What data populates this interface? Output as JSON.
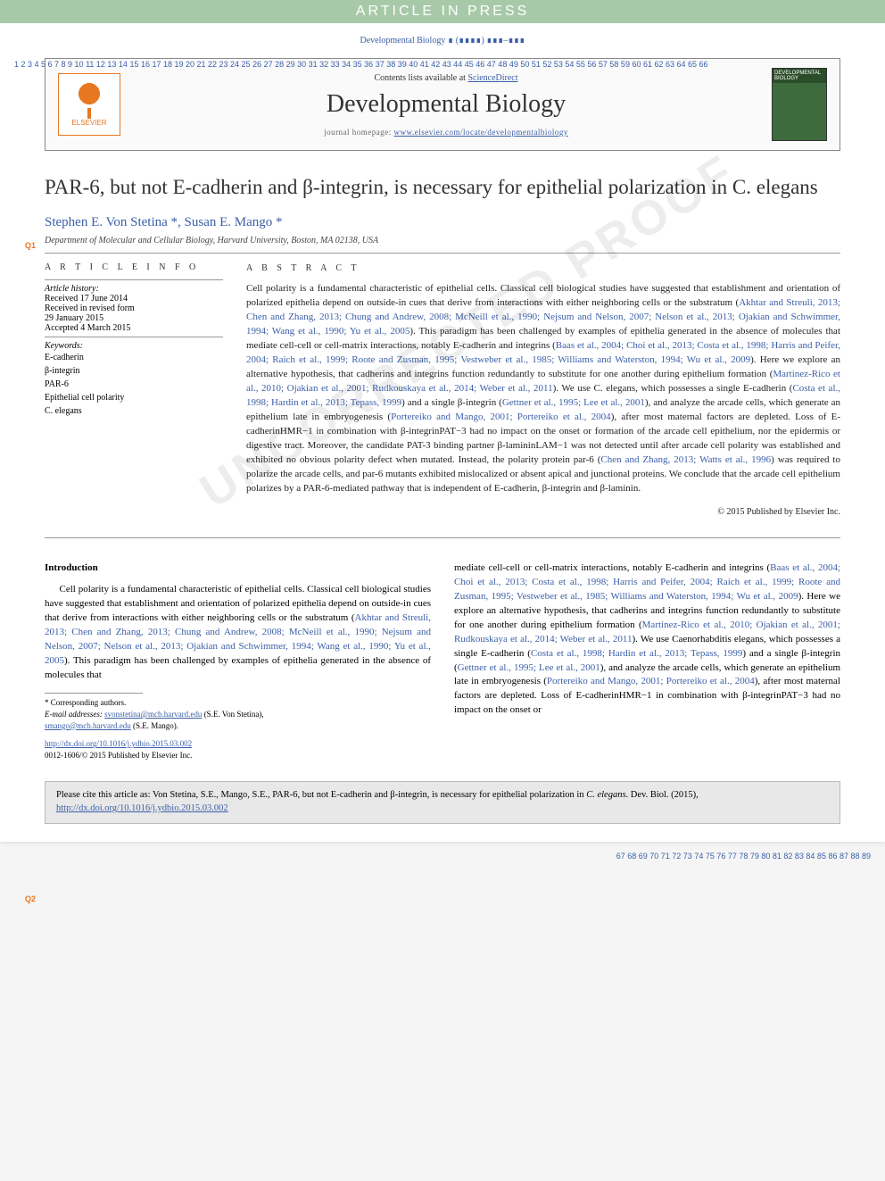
{
  "banner": "ARTICLE IN PRESS",
  "journal_ref": "Developmental Biology ∎ (∎∎∎∎) ∎∎∎–∎∎∎",
  "header": {
    "contents_prefix": "Contents lists available at ",
    "contents_link": "ScienceDirect",
    "journal_name": "Developmental Biology",
    "homepage_prefix": "journal homepage: ",
    "homepage_url": "www.elsevier.com/locate/developmentalbiology",
    "publisher": "ELSEVIER",
    "cover_caption": "DEVELOPMENTAL BIOLOGY"
  },
  "title": "PAR-6, but not E-cadherin and β-integrin, is necessary for epithelial polarization in C. elegans",
  "authors": "Stephen E. Von Stetina *, Susan E. Mango *",
  "affiliation": "Department of Molecular and Cellular Biology, Harvard University, Boston, MA 02138, USA",
  "q_markers": {
    "q1": "Q1",
    "q2": "Q2"
  },
  "info": {
    "head": "A R T I C L E   I N F O",
    "history_label": "Article history:",
    "received": "Received 17 June 2014",
    "revised": "Received in revised form",
    "revised_date": "29 January 2015",
    "accepted": "Accepted 4 March 2015",
    "keywords_label": "Keywords:",
    "keywords": [
      "E-cadherin",
      "β-integrin",
      "PAR-6",
      "Epithelial cell polarity",
      "C. elegans"
    ]
  },
  "abstract": {
    "head": "A B S T R A C T",
    "text_parts": [
      "Cell polarity is a fundamental characteristic of epithelial cells. Classical cell biological studies have suggested that establishment and orientation of polarized epithelia depend on outside-in cues that derive from interactions with either neighboring cells or the substratum (",
      "Akhtar and Streuli, 2013; Chen and Zhang, 2013; Chung and Andrew, 2008; McNeill et al., 1990; Nejsum and Nelson, 2007; Nelson et al., 2013; Ojakian and Schwimmer, 1994; Wang et al., 1990; Yu et al., 2005",
      "). This paradigm has been challenged by examples of epithelia generated in the absence of molecules that mediate cell-cell or cell-matrix interactions, notably E-cadherin and integrins (",
      "Baas et al., 2004; Choi et al., 2013; Costa et al., 1998; Harris and Peifer, 2004; Raich et al., 1999; Roote and Zusman, 1995; Vestweber et al., 1985; Williams and Waterston, 1994; Wu et al., 2009",
      "). Here we explore an alternative hypothesis, that cadherins and integrins function redundantly to substitute for one another during epithelium formation (",
      "Martinez-Rico et al., 2010; Ojakian et al., 2001; Rudkouskaya et al., 2014; Weber et al., 2011",
      "). We use C. elegans, which possesses a single E-cadherin (",
      "Costa et al., 1998; Hardin et al., 2013; Tepass, 1999",
      ") and a single β-integrin (",
      "Gettner et al., 1995; Lee et al., 2001",
      "), and analyze the arcade cells, which generate an epithelium late in embryogenesis (",
      "Portereiko and Mango, 2001; Portereiko et al., 2004",
      "), after most maternal factors are depleted. Loss of E-cadherinHMR−1 in combination with β-integrinPAT−3 had no impact on the onset or formation of the arcade cell epithelium, nor the epidermis or digestive tract. Moreover, the candidate PAT-3 binding partner β-lamininLAM−1 was not detected until after arcade cell polarity was established and exhibited no obvious polarity defect when mutated. Instead, the polarity protein par-6 (",
      "Chen and Zhang, 2013; Watts et al., 1996",
      ") was required to polarize the arcade cells, and par-6 mutants exhibited mislocalized or absent apical and junctional proteins. We conclude that the arcade cell epithelium polarizes by a PAR-6-mediated pathway that is independent of E-cadherin, β-integrin and β-laminin."
    ],
    "copyright": "© 2015 Published by Elsevier Inc."
  },
  "watermark": "UNCORRECTED PROOF",
  "intro": {
    "head": "Introduction",
    "col1_parts": [
      "Cell polarity is a fundamental characteristic of epithelial cells. Classical cell biological studies have suggested that establishment and orientation of polarized epithelia depend on outside-in cues that derive from interactions with either neighboring cells or the substratum (",
      "Akhtar and Streuli, 2013; Chen and Zhang, 2013; Chung and Andrew, 2008; McNeill et al., 1990; Nejsum and Nelson, 2007; Nelson et al., 2013; Ojakian and Schwimmer, 1994; Wang et al., 1990; Yu et al., 2005",
      "). This paradigm has been challenged by examples of epithelia generated in the absence of molecules that"
    ],
    "col2_parts": [
      "mediate cell-cell or cell-matrix interactions, notably E-cadherin and integrins (",
      "Baas et al., 2004; Choi et al., 2013; Costa et al., 1998; Harris and Peifer, 2004; Raich et al., 1999; Roote and Zusman, 1995; Vestweber et al., 1985; Williams and Waterston, 1994; Wu et al., 2009",
      "). Here we explore an alternative hypothesis, that cadherins and integrins function redundantly to substitute for one another during epithelium formation (",
      "Martinez-Rico et al., 2010; Ojakian et al., 2001; Rudkouskaya et al., 2014; Weber et al., 2011",
      "). We use Caenorhabditis elegans, which possesses a single E-cadherin (",
      "Costa et al., 1998; Hardin et al., 2013; Tepass, 1999",
      ") and a single β-integrin (",
      "Gettner et al., 1995; Lee et al., 2001",
      "), and analyze the arcade cells, which generate an epithelium late in embryogenesis (",
      "Portereiko and Mango, 2001; Portereiko et al., 2004",
      "), after most maternal factors are depleted. Loss of E-cadherinHMR−1 in combination with β-integrinPAT−3 had no impact on the onset or"
    ]
  },
  "footnotes": {
    "corr": "* Corresponding authors.",
    "email_label": "E-mail addresses: ",
    "email1": "svonstetina@mcb.harvard.edu",
    "email1_who": " (S.E. Von Stetina), ",
    "email2": "smango@mcb.harvard.edu",
    "email2_who": " (S.E. Mango)."
  },
  "doi": {
    "url": "http://dx.doi.org/10.1016/j.ydbio.2015.03.002",
    "issn": "0012-1606/© 2015 Published by Elsevier Inc."
  },
  "citation_box": {
    "prefix": "Please cite this article as: Von Stetina, S.E., Mango, S.E., PAR-6, but not E-cadherin and β-integrin, is necessary for epithelial polarization in ",
    "ital": "C. elegans",
    "suffix": ". Dev. Biol. (2015), ",
    "url": "http://dx.doi.org/10.1016/j.ydbio.2015.03.002"
  },
  "line_numbers": {
    "left_start": 1,
    "left_end": 66,
    "right_start": 67,
    "right_end": 89
  },
  "colors": {
    "link": "#3b5fa8",
    "banner_bg": "#a8c9a8",
    "orange": "#e87722"
  }
}
